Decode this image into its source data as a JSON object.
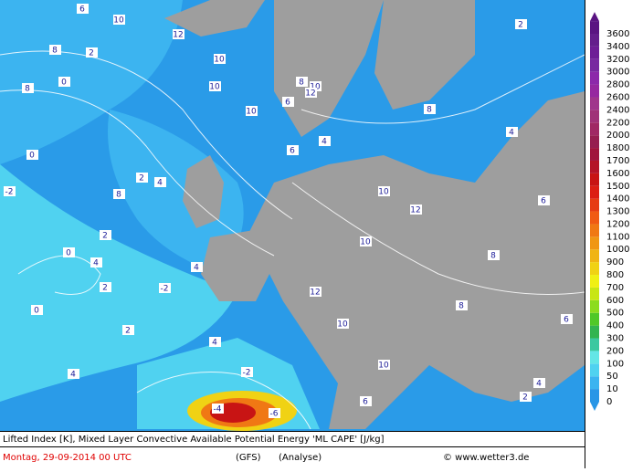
{
  "caption": {
    "title": "Lifted Index [K], Mixed Layer Convective Available Potential Energy 'ML CAPE' [J/kg]",
    "date": "Montag, 29-09-2014  00 UTC",
    "model": "(GFS)",
    "run": "(Analyse)",
    "credit": "© www.wetter3.de"
  },
  "colorbar": {
    "levels": [
      0,
      10,
      50,
      100,
      200,
      300,
      400,
      500,
      600,
      700,
      800,
      900,
      1000,
      1100,
      1200,
      1300,
      1400,
      1500,
      1600,
      1700,
      1800,
      2000,
      2200,
      2400,
      2600,
      2800,
      3000,
      3200,
      3400,
      3600
    ],
    "colors": [
      "#2896e6",
      "#3cb4f0",
      "#50d2f0",
      "#64e6e6",
      "#3cc8a0",
      "#32b450",
      "#50c828",
      "#8cdc1e",
      "#c8e614",
      "#f0f014",
      "#f0d214",
      "#f0b414",
      "#f09614",
      "#f07814",
      "#f05a14",
      "#e63c14",
      "#dc1e14",
      "#c81414",
      "#b41428",
      "#a0143c",
      "#961e50",
      "#a02864",
      "#a03278",
      "#a0368c",
      "#9628a0",
      "#8c28aa",
      "#7828a0",
      "#6e1e96",
      "#641e8c",
      "#5a1482"
    ]
  },
  "contour_labels": [
    "6",
    "8",
    "10",
    "12",
    "2",
    "0",
    "8",
    "10",
    "10",
    "10",
    "6",
    "8",
    "10",
    "12",
    "4",
    "6",
    "4",
    "2",
    "0",
    "-2",
    "0",
    "2",
    "4",
    "8",
    "10",
    "12",
    "10",
    "8",
    "6",
    "4",
    "2",
    "0",
    "2",
    "4",
    "-2",
    "2",
    "4",
    "6",
    "10",
    "12",
    "10",
    "8",
    "6",
    "4",
    "2",
    "-2",
    "-4",
    "-6",
    "4",
    "8"
  ]
}
